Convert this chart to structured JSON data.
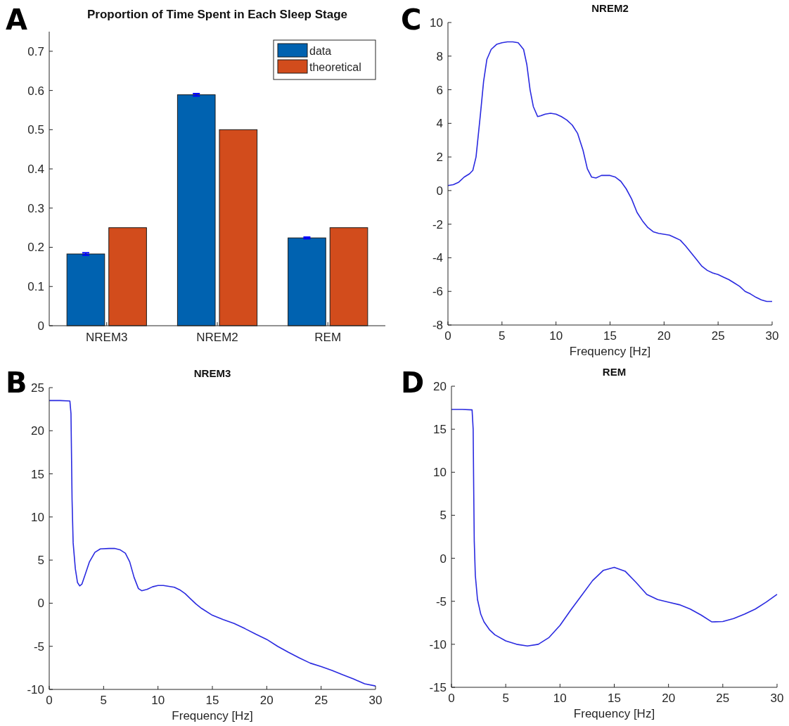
{
  "chart_data": [
    {
      "type": "bar",
      "title": "Proportion of Time Spent in Each Sleep Stage",
      "annotations": [
        "A"
      ],
      "categories": [
        "NREM3",
        "NREM2",
        "REM"
      ],
      "series": [
        {
          "name": "data",
          "color": "#0062b0",
          "values": [
            0.183,
            0.589,
            0.224
          ],
          "errors": [
            0.003,
            0.003,
            0.002
          ]
        },
        {
          "name": "theoretical",
          "color": "#d24c1c",
          "values": [
            0.25,
            0.5,
            0.25
          ]
        }
      ],
      "ylim": [
        0,
        0.75
      ],
      "yticks": [
        0,
        0.1,
        0.2,
        0.3,
        0.4,
        0.5,
        0.6,
        0.7
      ],
      "legend": "top right"
    },
    {
      "type": "line",
      "title": "NREM2",
      "xlabel": "Frequency [Hz]",
      "annotations": [
        "C"
      ],
      "xlim": [
        0,
        30
      ],
      "xticks": [
        0,
        5,
        10,
        15,
        20,
        25,
        30
      ],
      "ylim": [
        -8,
        10
      ],
      "yticks": [
        -8,
        -6,
        -4,
        -2,
        0,
        2,
        4,
        6,
        8,
        10
      ],
      "series": [
        {
          "color": "#2a2ae0",
          "x": [
            0,
            0.5,
            1,
            1.5,
            2,
            2.3,
            2.6,
            3,
            3.3,
            3.6,
            4,
            4.5,
            5,
            5.5,
            6,
            6.5,
            7,
            7.3,
            7.6,
            7.9,
            8.3,
            8.6,
            9,
            9.5,
            10,
            10.5,
            11,
            11.5,
            12,
            12.5,
            12.9,
            13.3,
            13.7,
            14.2,
            15,
            15.5,
            16,
            16.5,
            17,
            17.5,
            18,
            18.5,
            19,
            19.5,
            20,
            20.5,
            21,
            21.5,
            22,
            22.5,
            23,
            23.5,
            24,
            24.5,
            25,
            25.5,
            26,
            26.5,
            27,
            27.5,
            28,
            28.5,
            29,
            29.5,
            30
          ],
          "values": [
            0.3,
            0.35,
            0.5,
            0.8,
            1.0,
            1.2,
            2,
            4.5,
            6.5,
            7.8,
            8.4,
            8.7,
            8.8,
            8.85,
            8.85,
            8.8,
            8.4,
            7.5,
            6,
            5,
            4.4,
            4.45,
            4.55,
            4.6,
            4.55,
            4.4,
            4.2,
            3.9,
            3.4,
            2.4,
            1.3,
            0.8,
            0.75,
            0.9,
            0.9,
            0.8,
            0.55,
            0.1,
            -0.5,
            -1.3,
            -1.8,
            -2.2,
            -2.45,
            -2.55,
            -2.6,
            -2.65,
            -2.8,
            -2.95,
            -3.3,
            -3.7,
            -4.1,
            -4.5,
            -4.75,
            -4.9,
            -5.0,
            -5.15,
            -5.3,
            -5.5,
            -5.7,
            -6.0,
            -6.15,
            -6.35,
            -6.5,
            -6.6,
            -6.6
          ]
        }
      ]
    },
    {
      "type": "line",
      "title": "NREM3",
      "xlabel": "Frequency [Hz]",
      "annotations": [
        "B"
      ],
      "xlim": [
        0,
        30
      ],
      "xticks": [
        0,
        5,
        10,
        15,
        20,
        25,
        30
      ],
      "ylim": [
        -10,
        25
      ],
      "yticks": [
        -10,
        -5,
        0,
        5,
        10,
        15,
        20,
        25
      ],
      "series": [
        {
          "color": "#2a2ae0",
          "x": [
            0,
            1,
            1.9,
            2.0,
            2.1,
            2.2,
            2.4,
            2.6,
            2.8,
            3.0,
            3.3,
            3.7,
            4.2,
            4.7,
            5.5,
            6,
            6.5,
            7,
            7.4,
            7.8,
            8.2,
            8.5,
            9,
            9.5,
            10,
            10.5,
            11,
            11.5,
            12,
            12.5,
            13,
            13.5,
            14,
            15,
            16,
            17,
            18,
            19,
            20,
            21,
            22,
            23,
            24,
            25,
            26,
            27,
            28,
            29,
            30
          ],
          "values": [
            23.5,
            23.5,
            23.45,
            22,
            12,
            7,
            4,
            2.4,
            2.0,
            2.2,
            3.3,
            4.8,
            5.9,
            6.3,
            6.35,
            6.35,
            6.2,
            5.8,
            4.8,
            3.0,
            1.7,
            1.45,
            1.6,
            1.9,
            2.05,
            2.05,
            1.95,
            1.85,
            1.55,
            1.1,
            0.5,
            -0.1,
            -0.6,
            -1.4,
            -1.9,
            -2.35,
            -2.95,
            -3.6,
            -4.2,
            -5.0,
            -5.7,
            -6.35,
            -6.95,
            -7.35,
            -7.8,
            -8.3,
            -8.8,
            -9.35,
            -9.6
          ]
        }
      ]
    },
    {
      "type": "line",
      "title": "REM",
      "xlabel": "Frequency [Hz]",
      "annotations": [
        "D"
      ],
      "xlim": [
        0,
        30
      ],
      "xticks": [
        0,
        5,
        10,
        15,
        20,
        25,
        30
      ],
      "ylim": [
        -15,
        20
      ],
      "yticks": [
        -15,
        -10,
        -5,
        0,
        5,
        10,
        15,
        20
      ],
      "series": [
        {
          "color": "#2a2ae0",
          "x": [
            0,
            1,
            1.9,
            2.0,
            2.05,
            2.1,
            2.2,
            2.4,
            2.7,
            3,
            3.5,
            4,
            5,
            6,
            7,
            8,
            9,
            10,
            11,
            12,
            13,
            14,
            15,
            16,
            17,
            18,
            19,
            20,
            21,
            22,
            23,
            24,
            25,
            26,
            27,
            28,
            29,
            30
          ],
          "values": [
            17.3,
            17.3,
            17.25,
            15,
            8,
            2,
            -2,
            -4.8,
            -6.5,
            -7.4,
            -8.3,
            -8.9,
            -9.6,
            -10.0,
            -10.2,
            -10.0,
            -9.2,
            -7.8,
            -6.0,
            -4.3,
            -2.6,
            -1.4,
            -1.05,
            -1.5,
            -2.8,
            -4.2,
            -4.8,
            -5.1,
            -5.4,
            -5.9,
            -6.6,
            -7.4,
            -7.35,
            -7.0,
            -6.5,
            -5.9,
            -5.1,
            -4.2
          ]
        }
      ]
    }
  ]
}
